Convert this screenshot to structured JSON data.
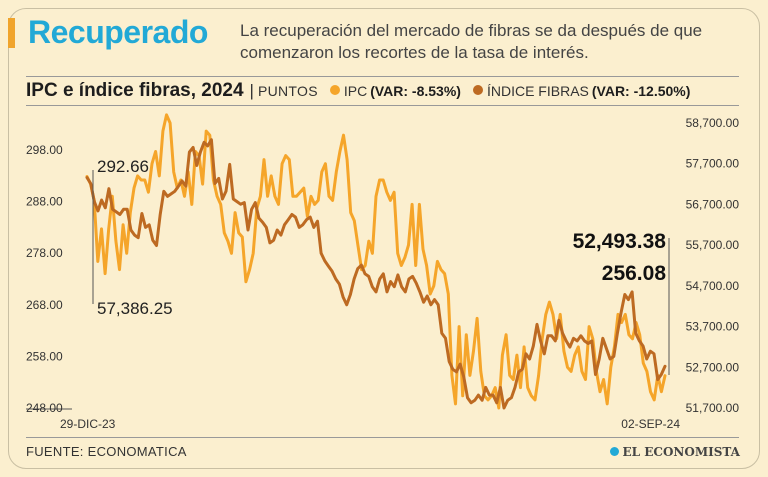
{
  "header": {
    "headline": "Recuperado",
    "subtitle": "La recuperación del mercado de fibras se da después de que comenzaron los recortes de la tasa de interés."
  },
  "colors": {
    "ipc": "#f5a52a",
    "fibras": "#bd6a22",
    "headline": "#22a9d6",
    "background": "#fbefcf"
  },
  "footer": {
    "source": "FUENTE: ECONOMATICA",
    "logo": "EL ECONOMISTA"
  },
  "chart_data": {
    "type": "line",
    "title": "IPC e índice fibras, 2024",
    "units": "PUNTOS",
    "x_start_label": "29-DIC-23",
    "x_end_label": "02-SEP-24",
    "y_left_ticks": [
      "298.00",
      "288.00",
      "278.00",
      "268.00",
      "258.00",
      "248.00"
    ],
    "y_right_ticks": [
      "58,700.00",
      "57,700.00",
      "56,700.00",
      "55,700.00",
      "54,700.00",
      "53,700.00",
      "52,700.00",
      "51,700.00"
    ],
    "annotations": {
      "fibras_start": "292.66",
      "ipc_start": "57,386.25",
      "ipc_end": "52,493.38",
      "fibras_end": "256.08"
    },
    "series": [
      {
        "name": "IPC",
        "variation": "(VAR: -8.53%)",
        "axis": "right",
        "ylim": [
          51700,
          58700
        ],
        "values": [
          57386,
          57200,
          56800,
          55300,
          56100,
          55000,
          56100,
          56900,
          55800,
          55100,
          56200,
          55500,
          56500,
          57100,
          57400,
          57300,
          57300,
          57000,
          57700,
          58000,
          57400,
          58500,
          58900,
          58700,
          57500,
          57100,
          57300,
          56900,
          57500,
          56700,
          58000,
          57900,
          57200,
          58500,
          58400,
          57300,
          56900,
          56700,
          56000,
          55800,
          55500,
          56500,
          56000,
          55900,
          54800,
          55100,
          55500,
          56600,
          56900,
          57800,
          56900,
          57400,
          56900,
          56700,
          57700,
          57900,
          57800,
          56900,
          56900,
          57000,
          57100,
          56400,
          56900,
          56700,
          56800,
          57500,
          57700,
          56900,
          56800,
          57500,
          58000,
          58400,
          57800,
          56500,
          56300,
          55700,
          55100,
          55200,
          55800,
          55500,
          56900,
          57300,
          57300,
          57000,
          56800,
          57000,
          55500,
          55200,
          55400,
          55700,
          56700,
          55200,
          56700,
          55600,
          55200,
          54500,
          54700,
          55300,
          55100,
          55000,
          54500,
          52500,
          51800,
          53700,
          52000,
          53500,
          52500,
          53100,
          53900,
          52600,
          52000,
          51900,
          52000,
          52200,
          51700,
          53000,
          53500,
          52500,
          52400,
          53000,
          52200,
          53200,
          52200,
          52000,
          51900,
          52500,
          53400,
          54000,
          54300,
          54000,
          53400,
          54000,
          53100,
          52700,
          52600,
          53000,
          53200,
          52600,
          52400,
          53700,
          53400,
          52600,
          52100,
          52400,
          51800,
          52700,
          53200,
          54000,
          53800,
          54000,
          53500,
          53400,
          53800,
          53500,
          52800,
          52600,
          52100,
          51900,
          52500,
          52100,
          52493
        ]
      },
      {
        "name": "ÍNDICE FIBRAS",
        "variation": "(VAR: -12.50%)",
        "axis": "left",
        "ylim": [
          248,
          298
        ],
        "values": [
          292.66,
          291.5,
          288.0,
          286.2,
          288.3,
          286.8,
          290.5,
          286.5,
          286.0,
          285.5,
          286.5,
          286.5,
          282.5,
          281.5,
          281.0,
          285.7,
          283.0,
          283.5,
          280.5,
          279.5,
          285.5,
          290.0,
          289.0,
          289.5,
          290.0,
          291.0,
          292.0,
          291.0,
          297.6,
          298.5,
          295.0,
          297.6,
          299.5,
          298.8,
          300.0,
          291.5,
          292.5,
          288.5,
          290.0,
          295.2,
          288.5,
          288.0,
          287.5,
          287.8,
          282.5,
          286.5,
          287.8,
          284.8,
          284.0,
          283.0,
          280.0,
          280.5,
          282.5,
          281.5,
          283.5,
          284.5,
          285.5,
          285.0,
          283.0,
          283.5,
          284.5,
          285.0,
          283.0,
          284.2,
          278.0,
          276.5,
          275.5,
          274.5,
          273.0,
          272.0,
          269.5,
          268.0,
          270.0,
          273.0,
          275.0,
          275.7,
          274.0,
          273.5,
          271.5,
          270.5,
          273.0,
          274.0,
          270.5,
          272.5,
          271.5,
          273.8,
          271.5,
          270.5,
          273.0,
          273.5,
          272.2,
          270.5,
          268.5,
          269.7,
          268.0,
          269.0,
          268.0,
          262.5,
          261.5,
          257.0,
          255.5,
          255.0,
          256.5,
          254.0,
          250.0,
          249.0,
          249.5,
          250.5,
          249.5,
          252.0,
          250.5,
          250.5,
          249.0,
          252.0,
          248.0,
          249.5,
          250.0,
          252.0,
          255.0,
          255.5,
          258.5,
          257.5,
          260.0,
          264.2,
          261.0,
          258.5,
          262.0,
          262.0,
          261.0,
          265.0,
          262.5,
          261.0,
          259.8,
          261.5,
          261.0,
          262.0,
          261.0,
          260.5,
          261.0,
          254.5,
          257.5,
          261.5,
          259.5,
          257.5,
          258.0,
          262.5,
          266.5,
          270.0,
          269.0,
          270.5,
          262.5,
          261.0,
          260.0,
          257.5,
          259.0,
          258.5,
          253.5,
          254.5,
          256.08
        ]
      }
    ]
  }
}
